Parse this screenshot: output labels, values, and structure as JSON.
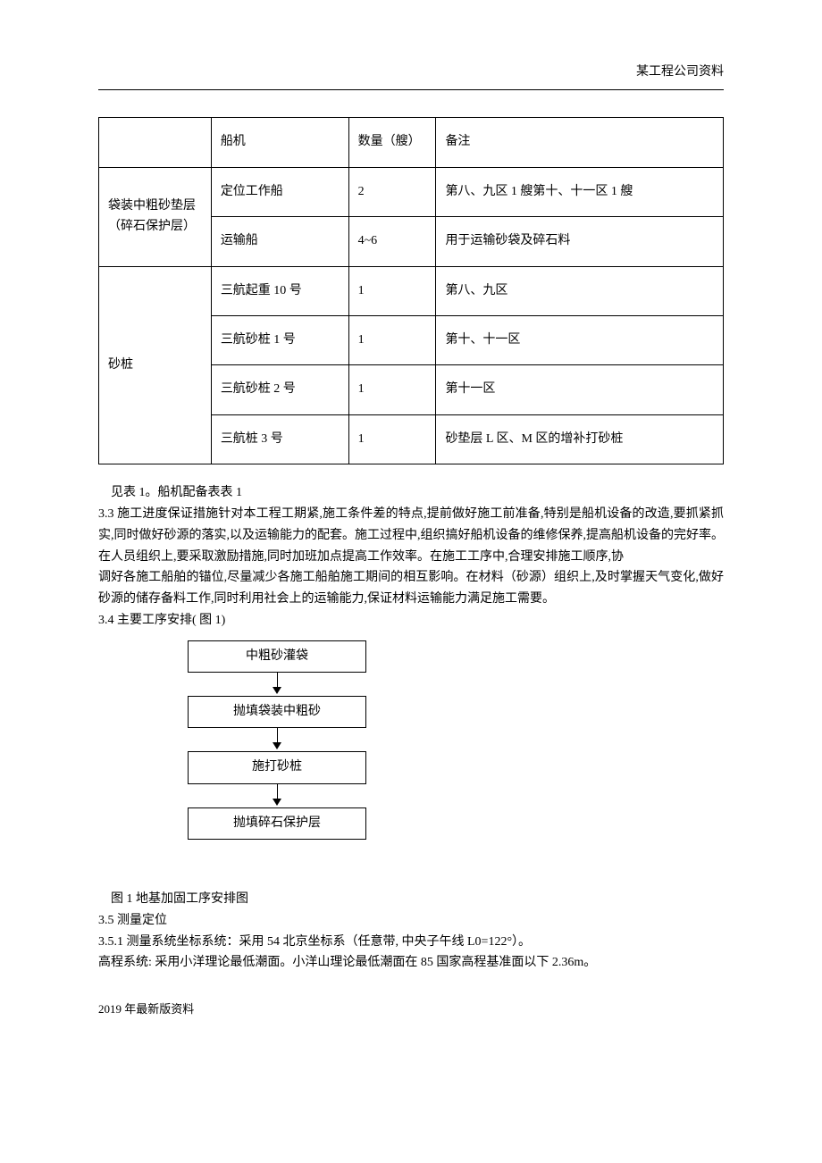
{
  "header": {
    "company": "某工程公司资料"
  },
  "table": {
    "headers": {
      "col1": "",
      "col2": "船机",
      "col3": "数量（艘）",
      "col4": "备注"
    },
    "group1": {
      "label": "袋装中粗砂垫层（碎石保护层）",
      "rows": [
        {
          "ship": "定位工作船",
          "qty": "2",
          "note": "第八、九区 1 艘第十、十一区 1 艘"
        },
        {
          "ship": "运输船",
          "qty": "4~6",
          "note": "用于运输砂袋及碎石料"
        }
      ]
    },
    "group2": {
      "label": "砂桩",
      "rows": [
        {
          "ship": "三航起重 10 号",
          "qty": "1",
          "note": "第八、九区"
        },
        {
          "ship": "三航砂桩 1 号",
          "qty": "1",
          "note": "第十、十一区"
        },
        {
          "ship": "三航砂桩 2 号",
          "qty": "1",
          "note": "第十一区"
        },
        {
          "ship": "三航桩 3 号",
          "qty": "1",
          "note": "砂垫层 L 区、M 区的增补打砂桩"
        }
      ]
    }
  },
  "paragraphs": {
    "p1": "见表 1。船机配备表表 1",
    "p2": "3.3 施工进度保证措施针对本工程工期紧,施工条件差的特点,提前做好施工前准备,特别是船机设备的改造,要抓紧抓实,同时做好砂源的落实,以及运输能力的配套。施工过程中,组织搞好船机设备的维修保养,提高船机设备的完好率。在人员组织上,要采取激励措施,同时加班加点提高工作效率。在施工工序中,合理安排施工顺序,协",
    "p3": "调好各施工船舶的锚位,尽量减少各施工船舶施工期间的相互影响。在材料（砂源）组织上,及时掌握天气变化,做好砂源的储存备料工作,同时利用社会上的运输能力,保证材料运输能力满足施工需要。",
    "p4": "3.4 主要工序安排( 图 1)",
    "p5": "图 1 地基加固工序安排图",
    "p6": "3.5 测量定位",
    "p7": "3.5.1 测量系统坐标系统：采用 54 北京坐标系（任意带, 中央子午线 L0=122°）。",
    "p8": "高程系统: 采用小洋理论最低潮面。小洋山理论最低潮面在 85 国家高程基准面以下 2.36m。"
  },
  "flowchart": {
    "boxes": [
      "中粗砂灌袋",
      "抛填袋装中粗砂",
      "施打砂桩",
      "抛填碎石保护层"
    ]
  },
  "footer": "2019 年最新版资料"
}
